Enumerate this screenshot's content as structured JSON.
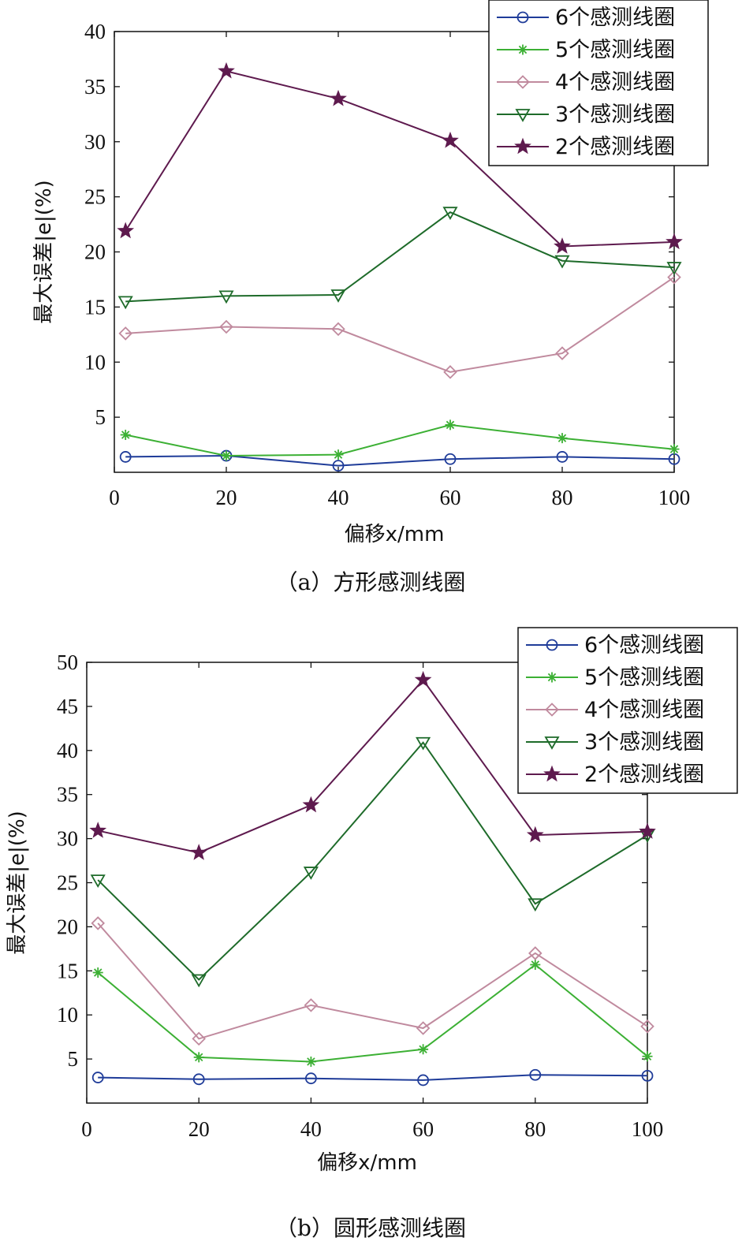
{
  "chart_data": [
    {
      "type": "line",
      "caption": "（a）方形感测线圈",
      "xlabel": "偏移x/mm",
      "ylabel": "最大误差|e|(%)",
      "xlim": [
        0,
        100
      ],
      "ylim": [
        0,
        40
      ],
      "xticks": [
        0,
        20,
        40,
        60,
        80,
        100
      ],
      "yticks": [
        5,
        10,
        15,
        20,
        25,
        30,
        35,
        40
      ],
      "x": [
        2,
        20,
        40,
        60,
        80,
        100
      ],
      "legend_position": "top-right",
      "series": [
        {
          "name": "6个感测线圈",
          "marker": "circle",
          "color": "#1f3c99",
          "values": [
            1.4,
            1.5,
            0.6,
            1.2,
            1.4,
            1.2
          ]
        },
        {
          "name": "5个感测线圈",
          "marker": "asterisk",
          "color": "#3cb034",
          "values": [
            3.4,
            1.5,
            1.6,
            4.3,
            3.1,
            2.1
          ]
        },
        {
          "name": "4个感测线圈",
          "marker": "diamond",
          "color": "#c08a9e",
          "values": [
            12.6,
            13.2,
            13.0,
            9.1,
            10.8,
            17.7
          ]
        },
        {
          "name": "3个感测线圈",
          "marker": "triangle-down",
          "color": "#1e6b2a",
          "values": [
            15.5,
            16.0,
            16.1,
            23.6,
            19.2,
            18.6
          ]
        },
        {
          "name": "2个感测线圈",
          "marker": "star",
          "color": "#5e1a4e",
          "values": [
            21.9,
            36.4,
            33.9,
            30.1,
            20.5,
            20.9
          ]
        }
      ]
    },
    {
      "type": "line",
      "caption": "（b）圆形感测线圈",
      "xlabel": "偏移x/mm",
      "ylabel": "最大误差|e|(%)",
      "xlim": [
        0,
        100
      ],
      "ylim": [
        0,
        50
      ],
      "xticks": [
        0,
        20,
        40,
        60,
        80,
        100
      ],
      "yticks": [
        5,
        10,
        15,
        20,
        25,
        30,
        35,
        40,
        45,
        50
      ],
      "x": [
        2,
        20,
        40,
        60,
        80,
        100
      ],
      "legend_position": "top-right",
      "series": [
        {
          "name": "6个感测线圈",
          "marker": "circle",
          "color": "#1f3c99",
          "values": [
            2.9,
            2.7,
            2.8,
            2.6,
            3.2,
            3.1
          ]
        },
        {
          "name": "5个感测线圈",
          "marker": "asterisk",
          "color": "#3cb034",
          "values": [
            14.8,
            5.2,
            4.7,
            6.1,
            15.7,
            5.3
          ]
        },
        {
          "name": "4个感测线圈",
          "marker": "diamond",
          "color": "#c08a9e",
          "values": [
            20.4,
            7.3,
            11.1,
            8.5,
            17.0,
            8.7
          ]
        },
        {
          "name": "3个感测线圈",
          "marker": "triangle-down",
          "color": "#1e6b2a",
          "values": [
            25.3,
            14.0,
            26.2,
            40.9,
            22.6,
            30.4
          ]
        },
        {
          "name": "2个感测线圈",
          "marker": "star",
          "color": "#5e1a4e",
          "values": [
            30.9,
            28.4,
            33.8,
            48.0,
            30.4,
            30.8
          ]
        }
      ]
    }
  ]
}
